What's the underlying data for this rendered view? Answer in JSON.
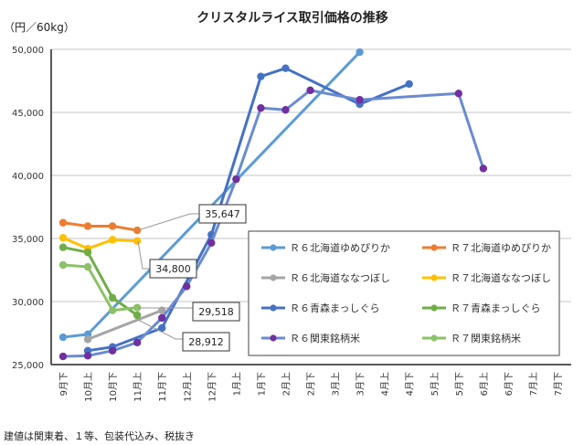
{
  "chart_data": {
    "type": "line",
    "title": "クリスタルライス取引価格の推移",
    "ylabel": "（円／60kg）",
    "xlabel": "",
    "ylim": [
      25000,
      50000
    ],
    "yticks": [
      "25,000",
      "30,000",
      "35,000",
      "40,000",
      "45,000",
      "50,000"
    ],
    "ytick_values": [
      25000,
      30000,
      35000,
      40000,
      45000,
      50000
    ],
    "grid": true,
    "legend_position": "bottom-right",
    "categories": [
      "9月下",
      "10月上",
      "10月下",
      "11月上",
      "11月下",
      "12月上",
      "12月下",
      "1月上",
      "1月下",
      "2月上",
      "2月下",
      "3月上",
      "3月下",
      "4月上",
      "4月下",
      "5月上",
      "5月下",
      "6月上",
      "6月下",
      "7月上",
      "7月下"
    ],
    "series": [
      {
        "name": "Ｒ６北海道ゆめぴりか",
        "color": "#5B9BD5",
        "marker": "#5B9BD5",
        "values": [
          27170,
          27400,
          null,
          null,
          null,
          null,
          null,
          null,
          null,
          null,
          null,
          null,
          49780,
          null,
          null,
          null,
          null,
          null,
          null,
          null,
          null
        ]
      },
      {
        "name": "Ｒ７北海道ゆめぴりか",
        "color": "#ED7D31",
        "marker": "#ED7D31",
        "values": [
          36250,
          35980,
          35980,
          35647,
          null,
          null,
          null,
          null,
          null,
          null,
          null,
          null,
          null,
          null,
          null,
          null,
          null,
          null,
          null,
          null,
          null
        ]
      },
      {
        "name": "Ｒ６北海道ななつぼし",
        "color": "#A5A5A5",
        "marker": "#A5A5A5",
        "values": [
          null,
          27000,
          null,
          null,
          29300,
          null,
          null,
          null,
          null,
          null,
          null,
          null,
          null,
          null,
          null,
          null,
          null,
          null,
          null,
          null,
          null
        ]
      },
      {
        "name": "Ｒ７北海道ななつぼし",
        "color": "#FFC000",
        "marker": "#FFC000",
        "values": [
          35050,
          34200,
          34900,
          34800,
          null,
          null,
          null,
          null,
          null,
          null,
          null,
          null,
          null,
          null,
          null,
          null,
          null,
          null,
          null,
          null,
          null
        ]
      },
      {
        "name": "Ｒ６青森まっしぐら",
        "color": "#4472C4",
        "marker": "#4472C4",
        "values": [
          null,
          26100,
          26400,
          null,
          27900,
          null,
          35300,
          null,
          47850,
          48500,
          null,
          null,
          45650,
          null,
          47250,
          null,
          null,
          null,
          null,
          null,
          null
        ]
      },
      {
        "name": "Ｒ７青森まっしぐら",
        "color": "#70AD47",
        "marker": "#70AD47",
        "values": [
          34300,
          33900,
          30300,
          28912,
          null,
          null,
          null,
          null,
          null,
          null,
          null,
          null,
          null,
          null,
          null,
          null,
          null,
          null,
          null,
          null,
          null
        ]
      },
      {
        "name": "Ｒ６関東銘柄米",
        "color": "#6A8BD0",
        "marker": "#7030A0",
        "values": [
          25650,
          25700,
          26100,
          26750,
          28700,
          31200,
          34650,
          39700,
          45350,
          45200,
          46750,
          null,
          46000,
          null,
          null,
          null,
          46500,
          40550,
          null,
          null,
          null
        ]
      },
      {
        "name": "Ｒ７関東銘柄米",
        "color": "#8CC168",
        "marker": "#8CC168",
        "values": [
          32900,
          32750,
          29300,
          29518,
          null,
          null,
          null,
          null,
          null,
          null,
          null,
          null,
          null,
          null,
          null,
          null,
          null,
          null,
          null,
          null,
          null
        ]
      }
    ],
    "annotations": [
      {
        "text": "35,647",
        "series": "Ｒ７北海道ゆめぴりか",
        "category": "11月上"
      },
      {
        "text": "34,800",
        "series": "Ｒ７北海道ななつぼし",
        "category": "11月上"
      },
      {
        "text": "29,518",
        "series": "Ｒ７関東銘柄米",
        "category": "11月上"
      },
      {
        "text": "28,912",
        "series": "Ｒ７青森まっしぐら",
        "category": "11月上"
      }
    ],
    "footnote": "建値は関東着、１等、包装代込み、税抜き"
  }
}
